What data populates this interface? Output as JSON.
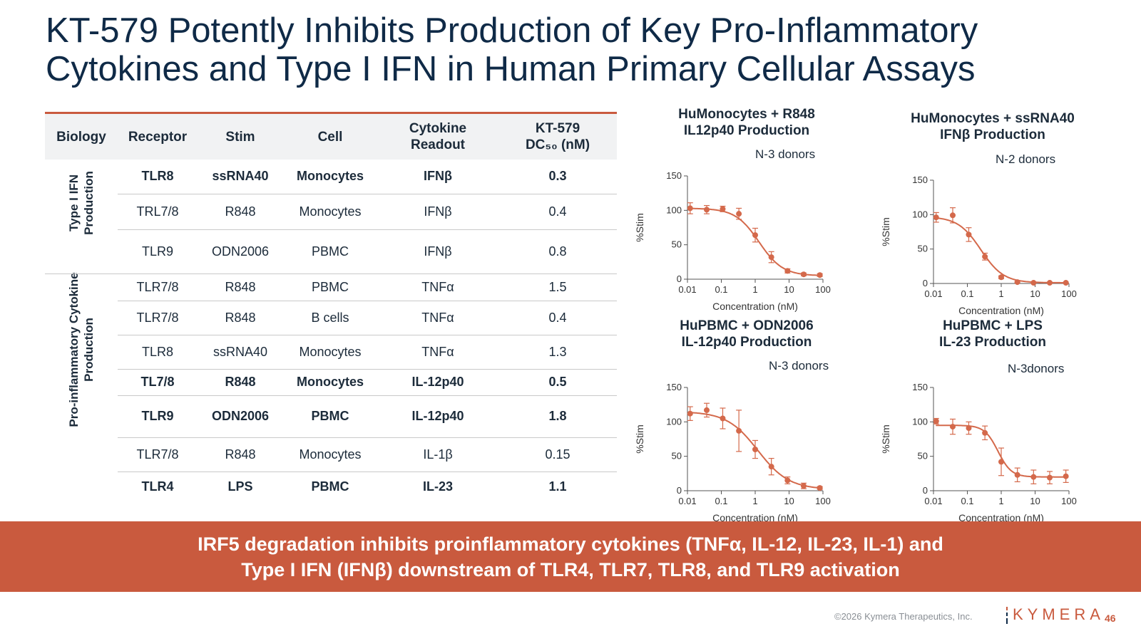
{
  "title": {
    "line1": "KT-579 Potently Inhibits Production of Key Pro-Inflammatory",
    "line2": "Cytokines and Type I IFN in Human Primary Cellular Assays"
  },
  "table": {
    "headers": {
      "biology": "Biology",
      "receptor": "Receptor",
      "stim": "Stim",
      "cell": "Cell",
      "readout_1": "Cytokine",
      "readout_2": "Readout",
      "dc50_1": "KT-579",
      "dc50_2": "DC₅₀ (nM)"
    },
    "groups": [
      {
        "label_1": "Type I IFN",
        "label_2": "Production"
      },
      {
        "label_1": "Pro-inflammatory Cytokine",
        "label_2": "Production"
      }
    ],
    "rows": [
      {
        "receptor": "TLR8",
        "stim": "ssRNA40",
        "cell": "Monocytes",
        "readout": "IFNβ",
        "dc50": "0.3",
        "bold": true
      },
      {
        "receptor": "TRL7/8",
        "stim": "R848",
        "cell": "Monocytes",
        "readout": "IFNβ",
        "dc50": "0.4",
        "bold": false
      },
      {
        "receptor": "TLR9",
        "stim": "ODN2006",
        "cell": "PBMC",
        "readout": "IFNβ",
        "dc50": "0.8",
        "bold": false
      },
      {
        "receptor": "TLR7/8",
        "stim": "R848",
        "cell": "PBMC",
        "readout": "TNFα",
        "dc50": "1.5",
        "bold": false
      },
      {
        "receptor": "TLR7/8",
        "stim": "R848",
        "cell": "B cells",
        "readout": "TNFα",
        "dc50": "0.4",
        "bold": false
      },
      {
        "receptor": "TLR8",
        "stim": "ssRNA40",
        "cell": "Monocytes",
        "readout": "TNFα",
        "dc50": "1.3",
        "bold": false
      },
      {
        "receptor": "TL7/8",
        "stim": "R848",
        "cell": "Monocytes",
        "readout": "IL-12p40",
        "dc50": "0.5",
        "bold": true
      },
      {
        "receptor": "TLR9",
        "stim": "ODN2006",
        "cell": "PBMC",
        "readout": "IL-12p40",
        "dc50": "1.8",
        "bold": true
      },
      {
        "receptor": "TLR7/8",
        "stim": "R848",
        "cell": "Monocytes",
        "readout": "IL-1β",
        "dc50": "0.15",
        "bold": false
      },
      {
        "receptor": "TLR4",
        "stim": "LPS",
        "cell": "PBMC",
        "readout": "IL-23",
        "dc50": "1.1",
        "bold": true
      }
    ]
  },
  "chart_data": [
    {
      "type": "scatter",
      "title": "HuMonocytes + R848",
      "subtitle": "IL12p40 Production",
      "annotation": "N-3 donors",
      "xlabel": "Concentration (nM)",
      "ylabel": "%Stim",
      "xscale": "log",
      "xticks": [
        "0.01",
        "0.1",
        "1",
        "10",
        "100"
      ],
      "yticks": [
        "0",
        "50",
        "100",
        "150"
      ],
      "ylim": [
        0,
        150
      ],
      "color": "#d4694b",
      "points": [
        {
          "x": 0.012,
          "y": 103,
          "err": 8
        },
        {
          "x": 0.037,
          "y": 101,
          "err": 6
        },
        {
          "x": 0.11,
          "y": 102,
          "err": 4
        },
        {
          "x": 0.33,
          "y": 95,
          "err": 8
        },
        {
          "x": 1.0,
          "y": 64,
          "err": 10
        },
        {
          "x": 3.0,
          "y": 32,
          "err": 8
        },
        {
          "x": 9.0,
          "y": 12,
          "err": 3
        },
        {
          "x": 27,
          "y": 7,
          "err": 2
        },
        {
          "x": 81,
          "y": 6,
          "err": 2
        }
      ],
      "fit": {
        "top": 103,
        "bottom": 5,
        "ic50": 1.3,
        "hill": 1.25
      }
    },
    {
      "type": "scatter",
      "title": "HuMonocytes + ssRNA40",
      "subtitle": "IFNβ Production",
      "annotation": "N-2 donors",
      "xlabel": "Concentration (nM)",
      "ylabel": "%Stim",
      "xscale": "log",
      "xticks": [
        "0.01",
        "0.1",
        "1",
        "10",
        "100"
      ],
      "yticks": [
        "0",
        "50",
        "100",
        "150"
      ],
      "ylim": [
        0,
        150
      ],
      "color": "#d4694b",
      "points": [
        {
          "x": 0.012,
          "y": 96,
          "err": 7
        },
        {
          "x": 0.037,
          "y": 99,
          "err": 11
        },
        {
          "x": 0.11,
          "y": 71,
          "err": 10
        },
        {
          "x": 0.33,
          "y": 39,
          "err": 5
        },
        {
          "x": 1.0,
          "y": 9,
          "err": 2
        },
        {
          "x": 3.0,
          "y": 2,
          "err": 1
        },
        {
          "x": 9.0,
          "y": 1,
          "err": 1
        },
        {
          "x": 27,
          "y": 1,
          "err": 1
        },
        {
          "x": 81,
          "y": 1,
          "err": 1
        }
      ],
      "fit": {
        "top": 97,
        "bottom": 1,
        "ic50": 0.25,
        "hill": 1.3
      }
    },
    {
      "type": "scatter",
      "title": "HuPBMC + ODN2006",
      "subtitle": "IL-12p40 Production",
      "annotation": "N-3 donors",
      "xlabel": "Concentration (nM)",
      "ylabel": "%Stim",
      "xscale": "log",
      "xticks": [
        "0.01",
        "0.1",
        "1",
        "10",
        "100"
      ],
      "yticks": [
        "0",
        "50",
        "100",
        "150"
      ],
      "ylim": [
        0,
        150
      ],
      "color": "#d4694b",
      "points": [
        {
          "x": 0.012,
          "y": 112,
          "err": 10
        },
        {
          "x": 0.037,
          "y": 117,
          "err": 10
        },
        {
          "x": 0.11,
          "y": 105,
          "err": 15
        },
        {
          "x": 0.33,
          "y": 87,
          "err": 30
        },
        {
          "x": 1.0,
          "y": 60,
          "err": 13
        },
        {
          "x": 3.0,
          "y": 35,
          "err": 12
        },
        {
          "x": 9.0,
          "y": 15,
          "err": 5
        },
        {
          "x": 27,
          "y": 7,
          "err": 4
        },
        {
          "x": 81,
          "y": 4,
          "err": 2
        }
      ],
      "fit": {
        "top": 115,
        "bottom": 2,
        "ic50": 1.2,
        "hill": 0.95
      }
    },
    {
      "type": "scatter",
      "title": "HuPBMC + LPS",
      "subtitle": "IL-23 Production",
      "annotation": "N-3donors",
      "xlabel": "Concentration (nM)",
      "ylabel": "%Stim",
      "xscale": "log",
      "xticks": [
        "0.01",
        "0.1",
        "1",
        "10",
        "100"
      ],
      "yticks": [
        "0",
        "50",
        "100",
        "150"
      ],
      "ylim": [
        0,
        150
      ],
      "color": "#d4694b",
      "points": [
        {
          "x": 0.012,
          "y": 101,
          "err": 4
        },
        {
          "x": 0.037,
          "y": 93,
          "err": 11
        },
        {
          "x": 0.11,
          "y": 91,
          "err": 9
        },
        {
          "x": 0.33,
          "y": 84,
          "err": 10
        },
        {
          "x": 1.0,
          "y": 42,
          "err": 20
        },
        {
          "x": 3.0,
          "y": 23,
          "err": 10
        },
        {
          "x": 9.0,
          "y": 20,
          "err": 10
        },
        {
          "x": 27,
          "y": 19,
          "err": 9
        },
        {
          "x": 81,
          "y": 21,
          "err": 9
        }
      ],
      "fit": {
        "top": 95,
        "bottom": 20,
        "ic50": 0.8,
        "hill": 2.2
      }
    }
  ],
  "banner": {
    "line1": "IRF5 degradation inhibits proinflammatory cytokines (TNFα, IL-12, IL-23, IL-1) and",
    "line2": "Type I IFN (IFNβ) downstream of TLR4, TLR7, TLR8, and TLR9 activation"
  },
  "footer": {
    "copyright": "©2026 Kymera Therapeutics, Inc.",
    "logo": "KYMERA",
    "page": "46",
    "accent": "#c95a3e"
  }
}
